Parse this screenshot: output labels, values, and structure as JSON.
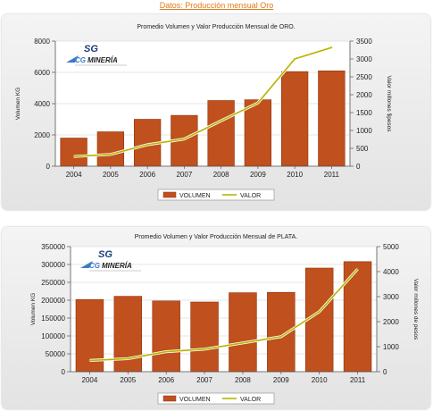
{
  "header": {
    "link_text": "Datos: Producción mensual Oro"
  },
  "logo": {
    "sg_text": "SG",
    "cg_text": "CG",
    "mineria_text": "MINERÍA"
  },
  "colors": {
    "bar": "#c0501d",
    "bar_edge": "#8f3510",
    "line": "#b8b400",
    "line_halo": "#ffffff"
  },
  "chart_data": [
    {
      "type": "bar",
      "title": "Promedio Volumen y Valor Producción Mensual de ORO.",
      "categories": [
        "2004",
        "2005",
        "2006",
        "2007",
        "2008",
        "2009",
        "2010",
        "2011"
      ],
      "series": [
        {
          "name": "VOLUMEN",
          "type": "bar",
          "axis": "left",
          "values": [
            1800,
            2200,
            3000,
            3250,
            4200,
            4250,
            6050,
            6100
          ]
        },
        {
          "name": "VALOR",
          "type": "line",
          "axis": "right",
          "values": [
            270,
            330,
            600,
            760,
            1270,
            1770,
            3000,
            3320
          ]
        }
      ],
      "ylabel": "Volumen KG",
      "y2label": "Valor millones $pesos",
      "ylim": [
        0,
        8000
      ],
      "yticks": [
        0,
        2000,
        4000,
        6000,
        8000
      ],
      "y2lim": [
        0,
        3500
      ],
      "y2ticks": [
        0,
        500,
        1000,
        1500,
        2000,
        2500,
        3000,
        3500
      ],
      "grid": true,
      "legend": "bottom"
    },
    {
      "type": "bar",
      "title": "Promedio Volumen y Valor Producción Mensual de PLATA.",
      "categories": [
        "2004",
        "2005",
        "2006",
        "2007",
        "2008",
        "2009",
        "2010",
        "2011"
      ],
      "series": [
        {
          "name": "VOLUMEN",
          "type": "bar",
          "axis": "left",
          "values": [
            202000,
            211000,
            198000,
            195000,
            221000,
            222000,
            290000,
            308000
          ]
        },
        {
          "name": "VALOR",
          "type": "line",
          "axis": "right",
          "values": [
            450,
            520,
            800,
            900,
            1150,
            1400,
            2400,
            4100
          ]
        }
      ],
      "ylabel": "Volumen KG",
      "y2label": "Valor millones de pesos",
      "ylim": [
        0,
        350000
      ],
      "yticks": [
        0,
        50000,
        100000,
        150000,
        200000,
        250000,
        300000,
        350000
      ],
      "y2lim": [
        0,
        5000
      ],
      "y2ticks": [
        0,
        1000,
        2000,
        3000,
        4000,
        5000
      ],
      "grid": true,
      "legend": "bottom"
    }
  ]
}
